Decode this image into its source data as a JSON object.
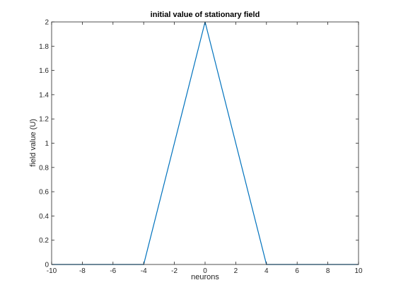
{
  "chart_data": {
    "type": "line",
    "title": "initial value of  stationary field",
    "xlabel": "neurons",
    "ylabel": "field value (U)",
    "xlim": [
      -10,
      10
    ],
    "ylim": [
      0,
      2
    ],
    "xticks": [
      -10,
      -8,
      -6,
      -4,
      -2,
      0,
      2,
      4,
      6,
      8,
      10
    ],
    "yticks": [
      0,
      0.2,
      0.4,
      0.6,
      0.8,
      1,
      1.2,
      1.4,
      1.6,
      1.8,
      2
    ],
    "xtick_labels": [
      "-10",
      "-8",
      "-6",
      "-4",
      "-2",
      "0",
      "2",
      "4",
      "6",
      "8",
      "10"
    ],
    "ytick_labels": [
      "0",
      "0.2",
      "0.4",
      "0.6",
      "0.8",
      "1",
      "1.2",
      "1.4",
      "1.6",
      "1.8",
      "2"
    ],
    "grid": false,
    "series": [
      {
        "color": "#0072bd",
        "x": [
          -10,
          -4,
          0,
          4,
          10
        ],
        "y": [
          0,
          0,
          2,
          0,
          0
        ]
      }
    ]
  }
}
